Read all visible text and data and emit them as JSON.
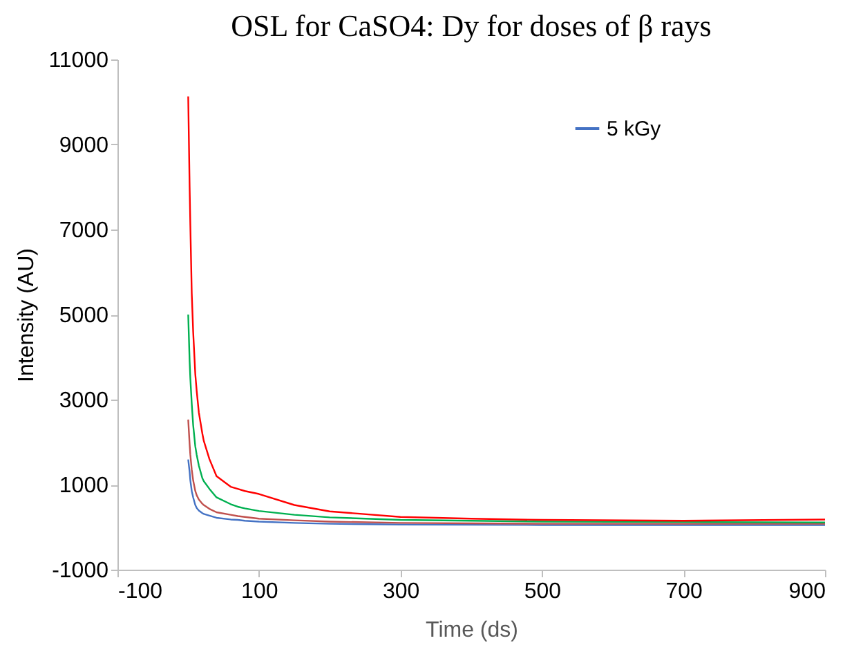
{
  "chart_data": {
    "type": "line",
    "title": "OSL for CaSO4: Dy for doses of β rays",
    "xlabel": "Time (ds)",
    "ylabel": "Intensity (AU)",
    "xlim": [
      -100,
      900
    ],
    "xticks": [
      -100,
      100,
      300,
      500,
      700,
      900
    ],
    "ylim": [
      -1000,
      11000
    ],
    "yticks": [
      -1000,
      1000,
      3000,
      5000,
      7000,
      9000,
      11000
    ],
    "grid": false,
    "legend": "top right",
    "marker": "none",
    "line_style": "solid",
    "x": [
      0,
      2,
      3,
      5,
      7,
      10,
      12,
      15,
      20,
      22,
      30,
      40,
      60,
      70,
      80,
      100,
      150,
      200,
      300,
      400,
      500,
      700,
      900
    ],
    "series": [
      {
        "name": "5 kGy",
        "color": "#4472c4",
        "values": [
          1590,
          1300,
          1100,
          850,
          700,
          520,
          450,
          390,
          330,
          310,
          270,
          220,
          180,
          170,
          150,
          130,
          100,
          80,
          60,
          55,
          50,
          50,
          50
        ]
      },
      {
        "color": "#c0504d",
        "values": [
          2530,
          1950,
          1700,
          1350,
          1100,
          850,
          750,
          650,
          550,
          520,
          430,
          350,
          290,
          260,
          240,
          200,
          160,
          130,
          100,
          90,
          80,
          80,
          80
        ]
      },
      {
        "color": "#00b050",
        "values": [
          5000,
          3900,
          3500,
          2900,
          2400,
          1900,
          1700,
          1450,
          1150,
          1080,
          900,
          700,
          540,
          480,
          440,
          380,
          290,
          230,
          170,
          150,
          130,
          120,
          110
        ]
      },
      {
        "color": "#ff0000",
        "values": [
          10130,
          8000,
          7100,
          5500,
          4600,
          3600,
          3200,
          2700,
          2200,
          2030,
          1600,
          1200,
          950,
          900,
          850,
          780,
          520,
          370,
          240,
          200,
          170,
          150,
          180
        ]
      }
    ]
  }
}
